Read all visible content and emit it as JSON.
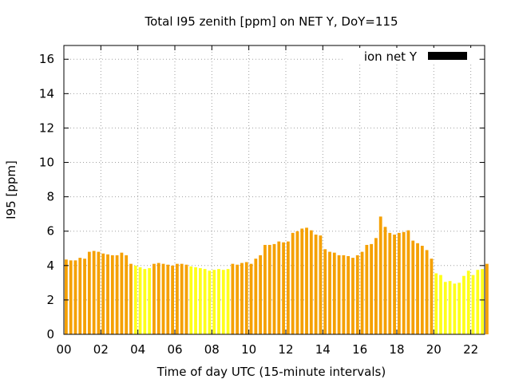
{
  "chart_data": {
    "type": "bar",
    "title": "Total I95 zenith [ppm] on NET Y, DoY=115",
    "xlabel": "Time of day UTC (15-minute intervals)",
    "ylabel": "I95 [ppm]",
    "xlim": [
      0,
      22.75
    ],
    "ylim": [
      0,
      16.8
    ],
    "x_ticks": [
      "00",
      "02",
      "04",
      "06",
      "08",
      "10",
      "12",
      "14",
      "16",
      "18",
      "20",
      "22"
    ],
    "y_ticks": [
      "0",
      "2",
      "4",
      "6",
      "8",
      "10",
      "12",
      "14",
      "16"
    ],
    "grid": true,
    "legend": {
      "position": "top-right",
      "entries": [
        {
          "label": "ion net Y",
          "color": "#000000"
        }
      ]
    },
    "colors": {
      "high": "#f5a000",
      "low": "#ffff1a"
    },
    "interval_hours": 0.25,
    "series": [
      {
        "values": [
          4.35,
          4.3,
          4.3,
          4.45,
          4.4,
          4.8,
          4.85,
          4.8,
          4.7,
          4.65,
          4.6,
          4.6,
          4.75,
          4.6,
          4.1,
          4.0,
          3.9,
          3.8,
          3.85,
          4.1,
          4.15,
          4.1,
          4.05,
          4.0,
          4.1,
          4.1,
          4.05,
          3.95,
          3.9,
          3.85,
          3.8,
          3.7,
          3.75,
          3.8,
          3.75,
          3.8,
          4.1,
          4.05,
          4.15,
          4.2,
          4.1,
          4.4,
          4.6,
          5.2,
          5.2,
          5.25,
          5.4,
          5.35,
          5.4,
          5.9,
          6.0,
          6.15,
          6.2,
          6.05,
          5.8,
          5.75,
          4.95,
          4.8,
          4.75,
          4.6,
          4.6,
          4.55,
          4.45,
          4.6,
          4.8,
          5.2,
          5.25,
          5.6,
          6.85,
          6.25,
          5.9,
          5.8,
          5.9,
          5.95,
          6.05,
          5.45,
          5.3,
          5.15,
          4.9,
          4.4,
          3.55,
          3.45,
          3.05,
          3.1,
          2.95,
          3.0,
          3.4,
          3.7,
          3.45,
          3.75,
          3.8,
          4.1
        ],
        "level": [
          "high",
          "high",
          "high",
          "high",
          "high",
          "high",
          "high",
          "high",
          "high",
          "high",
          "high",
          "high",
          "high",
          "high",
          "high",
          "low",
          "low",
          "low",
          "low",
          "high",
          "high",
          "high",
          "high",
          "high",
          "high",
          "high",
          "high",
          "low",
          "low",
          "low",
          "low",
          "low",
          "low",
          "low",
          "low",
          "low",
          "high",
          "high",
          "high",
          "high",
          "high",
          "high",
          "high",
          "high",
          "high",
          "high",
          "high",
          "high",
          "high",
          "high",
          "high",
          "high",
          "high",
          "high",
          "high",
          "high",
          "high",
          "high",
          "high",
          "high",
          "high",
          "high",
          "high",
          "high",
          "high",
          "high",
          "high",
          "high",
          "high",
          "high",
          "high",
          "high",
          "high",
          "high",
          "high",
          "high",
          "high",
          "high",
          "high",
          "high",
          "low",
          "low",
          "low",
          "low",
          "low",
          "low",
          "low",
          "low",
          "low",
          "low",
          "low",
          "high"
        ]
      }
    ]
  }
}
